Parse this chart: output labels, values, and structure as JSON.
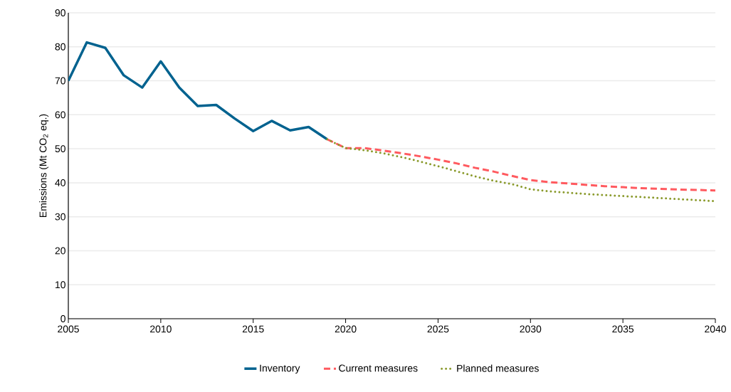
{
  "chart_data": {
    "type": "line",
    "ylabel": "Emissions (Mt CO$_{2}$ eq.)",
    "xlim": [
      2005,
      2040
    ],
    "xticks": [
      2005,
      2010,
      2015,
      2020,
      2025,
      2030,
      2035,
      2040
    ],
    "ylim": [
      0,
      90
    ],
    "yticks": [
      0,
      10,
      20,
      30,
      40,
      50,
      60,
      70,
      80,
      90
    ],
    "grid": "y",
    "legend": "bottom",
    "marker": "none",
    "series": [
      {
        "name": "Inventory",
        "color": "#00628f",
        "line_style": "solid",
        "x": [
          2005,
          2006,
          2007,
          2008,
          2009,
          2010,
          2011,
          2012,
          2013,
          2014,
          2015,
          2016,
          2017,
          2018,
          2019
        ],
        "values": [
          70,
          81.3,
          79.7,
          71.6,
          68,
          75.7,
          68,
          62.6,
          62.9,
          58.9,
          55.2,
          58.2,
          55.4,
          56.4,
          52.8
        ]
      },
      {
        "name": "Current measures",
        "color": "#ff5a5f",
        "line_style": "dashed",
        "x": [
          2019,
          2020,
          2021,
          2022,
          2023,
          2024,
          2025,
          2026,
          2027,
          2028,
          2029,
          2030,
          2031,
          2032,
          2033,
          2034,
          2035,
          2036,
          2037,
          2038,
          2039,
          2040
        ],
        "values": [
          52.8,
          50.2,
          50.2,
          49.5,
          48.7,
          47.8,
          46.8,
          45.7,
          44.4,
          43.3,
          42,
          40.8,
          40.2,
          39.8,
          39.4,
          39,
          38.7,
          38.4,
          38.2,
          38,
          37.9,
          37.7
        ]
      },
      {
        "name": "Planned measures",
        "color": "#8a9a2c",
        "line_style": "dotted",
        "x": [
          2019,
          2020,
          2021,
          2022,
          2023,
          2024,
          2025,
          2026,
          2027,
          2028,
          2029,
          2030,
          2031,
          2032,
          2033,
          2034,
          2035,
          2036,
          2037,
          2038,
          2039,
          2040
        ],
        "values": [
          52.8,
          50.2,
          49.6,
          48.7,
          47.6,
          46.3,
          44.9,
          43.4,
          41.9,
          40.6,
          39.6,
          38.1,
          37.5,
          37.1,
          36.7,
          36.4,
          36.1,
          35.8,
          35.5,
          35.2,
          34.9,
          34.6
        ]
      }
    ]
  }
}
